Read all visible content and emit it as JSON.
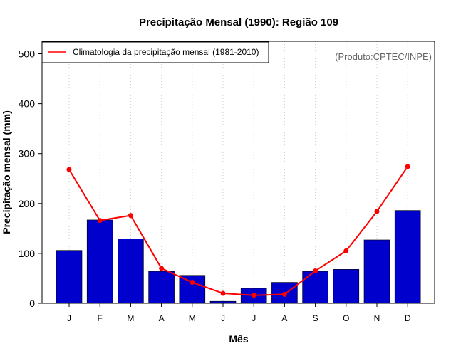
{
  "chart_data": {
    "type": "bar",
    "title": "Precipitação Mensal (1990): Região 109",
    "xlabel": "Mês",
    "ylabel": "Precipitação mensal (mm)",
    "ylim": [
      0,
      525
    ],
    "yticks": [
      0,
      100,
      200,
      300,
      400,
      500
    ],
    "categories": [
      "J",
      "F",
      "M",
      "A",
      "M",
      "J",
      "J",
      "A",
      "S",
      "O",
      "N",
      "D"
    ],
    "grid": "vertical dotted",
    "series": [
      {
        "name": "Precipitação mensal (1990)",
        "type": "bar",
        "color": "#0000CC",
        "values": [
          106,
          167,
          129,
          64,
          56,
          4,
          30,
          42,
          64,
          68,
          127,
          186
        ]
      },
      {
        "name": "Climatologia da precipitação mensal (1981-2010)",
        "type": "line",
        "color": "#FF0000",
        "values": [
          268,
          166,
          176,
          70,
          42,
          20,
          16,
          18,
          65,
          105,
          184,
          274
        ]
      }
    ],
    "legend": {
      "position": "top-left",
      "label": "Climatologia da precipitação mensal (1981-2010)"
    },
    "annotation": "(Produto:CPTEC/INPE)"
  }
}
